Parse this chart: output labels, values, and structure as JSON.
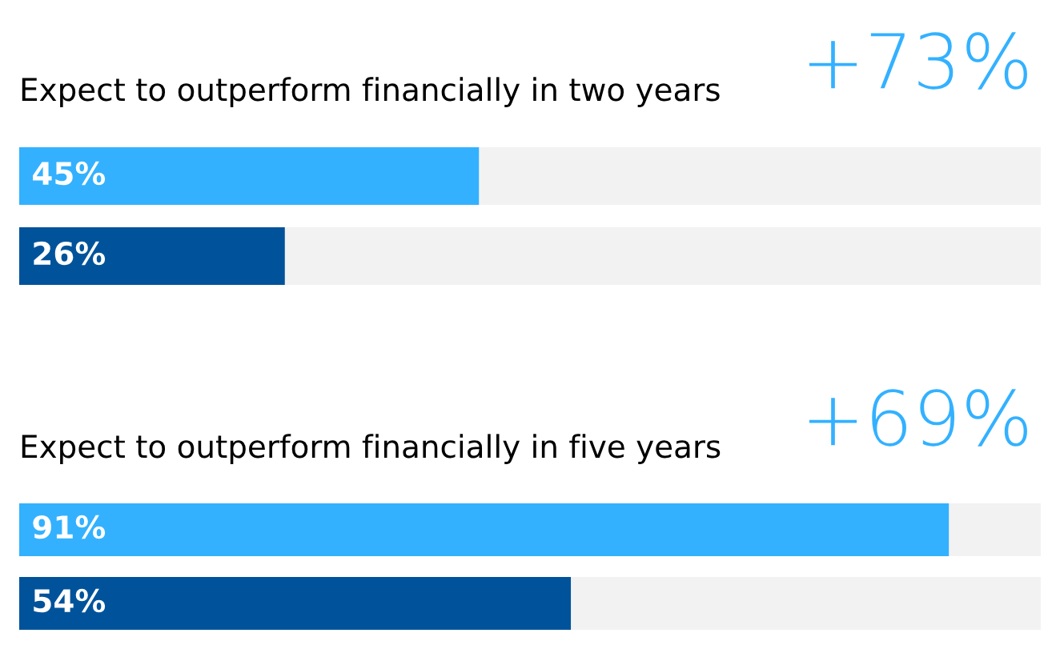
{
  "chart_data": [
    {
      "type": "bar",
      "orientation": "horizontal",
      "title": "Expect to outperform financially in two years",
      "categories": [
        null,
        null
      ],
      "values": [
        45,
        26
      ],
      "value_labels": [
        "45%",
        "26%"
      ],
      "colors": [
        "#33b1ff",
        "#00539a"
      ],
      "xlim": [
        0,
        100
      ],
      "annotations": [
        "+73%"
      ]
    },
    {
      "type": "bar",
      "orientation": "horizontal",
      "title": "Expect to outperform financially in five years",
      "categories": [
        null,
        null
      ],
      "values": [
        91,
        54
      ],
      "value_labels": [
        "91%",
        "54%"
      ],
      "colors": [
        "#33b1ff",
        "#00539a"
      ],
      "xlim": [
        0,
        100
      ],
      "annotations": [
        "+69%"
      ]
    }
  ]
}
